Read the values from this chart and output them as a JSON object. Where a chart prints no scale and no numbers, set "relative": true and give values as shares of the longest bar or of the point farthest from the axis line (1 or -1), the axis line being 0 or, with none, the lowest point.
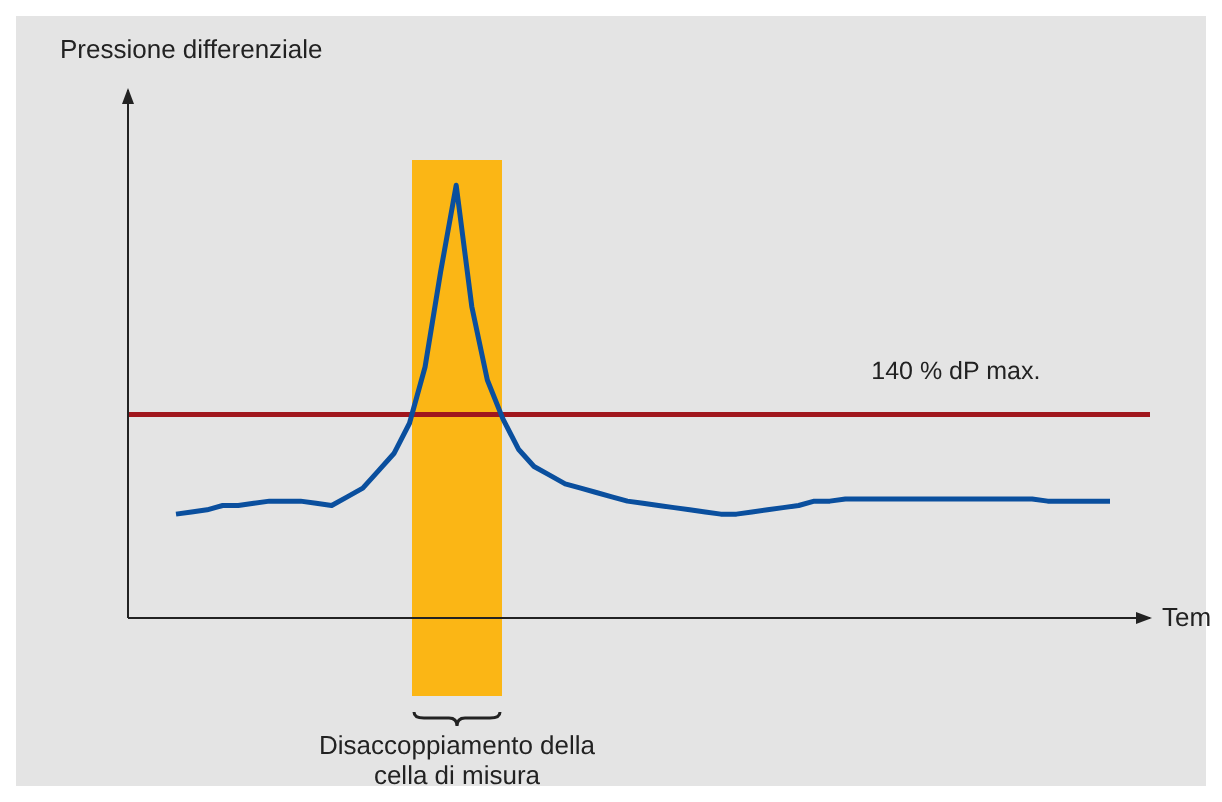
{
  "chart_data": {
    "type": "line",
    "ylabel": "Pressione differenziale",
    "xlabel": "Tem",
    "relative": true,
    "categories": [
      null,
      null,
      null,
      null,
      null,
      null,
      null,
      null,
      null,
      null,
      null,
      null,
      null,
      null,
      null,
      null,
      null,
      null,
      null,
      null,
      null,
      null,
      null,
      null,
      null,
      null,
      null,
      null,
      null,
      null,
      null,
      null,
      null,
      null,
      null,
      null,
      null,
      null,
      null,
      null,
      null,
      null,
      null,
      null,
      null,
      null,
      null,
      null,
      null,
      null,
      null,
      null,
      null,
      null,
      null,
      null,
      null,
      null,
      null,
      null,
      null
    ],
    "series": [
      {
        "color": "#0a4f9e",
        "values": [
          0.24,
          0.245,
          0.25,
          0.26,
          0.26,
          0.265,
          0.27,
          0.27,
          0.27,
          0.265,
          0.26,
          0.28,
          0.3,
          0.34,
          0.38,
          0.45,
          0.58,
          0.8,
          1,
          0.72,
          0.55,
          0.46,
          0.39,
          0.35,
          0.33,
          0.31,
          0.3,
          0.29,
          0.28,
          0.27,
          0.265,
          0.26,
          0.255,
          0.25,
          0.245,
          0.24,
          0.24,
          0.245,
          0.25,
          0.255,
          0.26,
          0.27,
          0.27,
          0.275,
          0.275,
          0.275,
          0.275,
          0.275,
          0.275,
          0.275,
          0.275,
          0.275,
          0.275,
          0.275,
          0.275,
          0.275,
          0.27,
          0.27,
          0.27,
          0.27,
          0.27
        ]
      }
    ],
    "ref_lines": [
      {
        "axis": "y",
        "value": 0.47,
        "label": "140 % dP max.",
        "color": "#a0161d"
      }
    ],
    "annotations": [
      "Disaccoppiamento della cella di misura"
    ],
    "marker": "none",
    "line_style": "solid"
  }
}
